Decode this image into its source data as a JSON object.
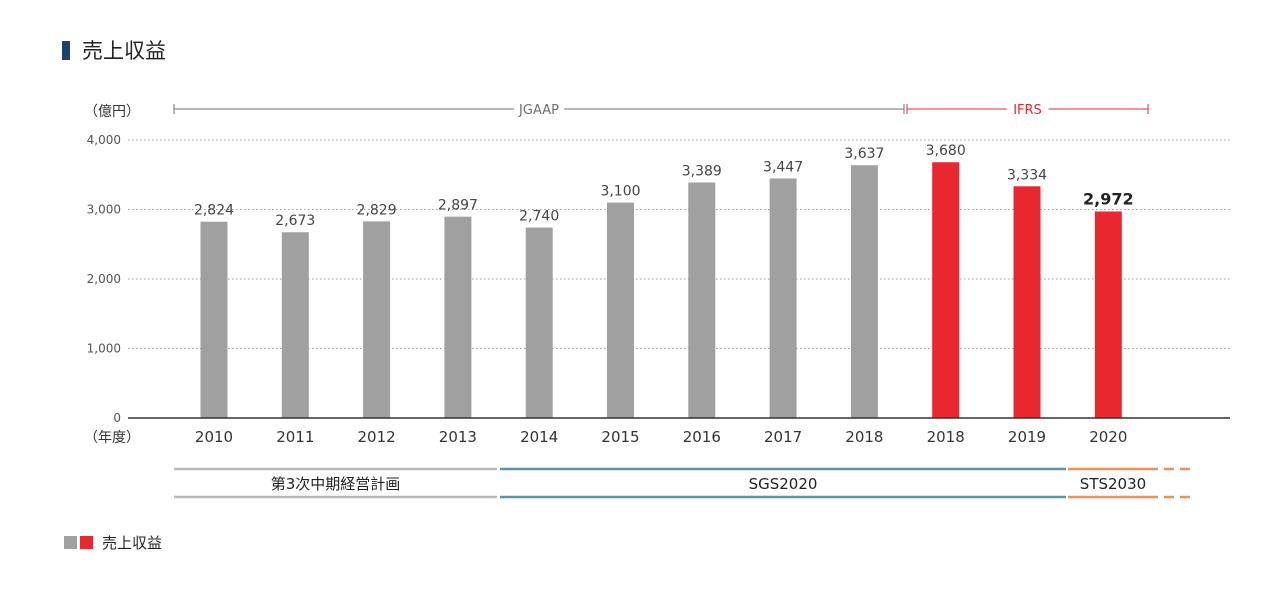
{
  "title": "売上収益",
  "chart_data": {
    "type": "bar",
    "unit_label": "（億円）",
    "xaxis_label": "（年度）",
    "yticks": [
      "4,000",
      "3,000",
      "2,000",
      "1,000",
      "0"
    ],
    "ytick_values": [
      4000,
      3000,
      2000,
      1000,
      0
    ],
    "ylim": [
      0,
      4000
    ],
    "categories": [
      "2010",
      "2011",
      "2012",
      "2013",
      "2014",
      "2015",
      "2016",
      "2017",
      "2018",
      "2018",
      "2019",
      "2020"
    ],
    "series": [
      {
        "name": "",
        "color": "#a0a0a0",
        "values": [
          2824,
          2673,
          2829,
          2897,
          2740,
          3100,
          3389,
          3447,
          3637,
          null,
          null,
          null
        ]
      },
      {
        "name": "",
        "color": "#e8282e",
        "values": [
          null,
          null,
          null,
          null,
          null,
          null,
          null,
          null,
          null,
          3680,
          3334,
          2972
        ]
      }
    ],
    "value_labels": [
      "2,824",
      "2,673",
      "2,829",
      "2,897",
      "2,740",
      "3,100",
      "3,389",
      "3,447",
      "3,637",
      "3,680",
      "3,334",
      "2,972"
    ],
    "grid": true,
    "accounting": [
      {
        "label": "JGAAP",
        "from_index": 0,
        "to_index": 8,
        "color": "#6f6f6f"
      },
      {
        "label": "IFRS",
        "from_index": 9,
        "to_index": 11,
        "color": "#e8282e"
      }
    ],
    "plans": [
      {
        "label": "第3次中期経営計画",
        "from_index": 0,
        "to_index": 3,
        "color": "#b9b9b9"
      },
      {
        "label": "SGS2020",
        "from_index": 4,
        "to_index": 10,
        "color": "#5b93a8"
      },
      {
        "label": "STS2030",
        "from_index": 11,
        "to_index": 11,
        "color": "#ec8f5b"
      }
    ],
    "legend": {
      "label": "売上収益",
      "colors": [
        "#a0a0a0",
        "#e8282e"
      ]
    }
  }
}
